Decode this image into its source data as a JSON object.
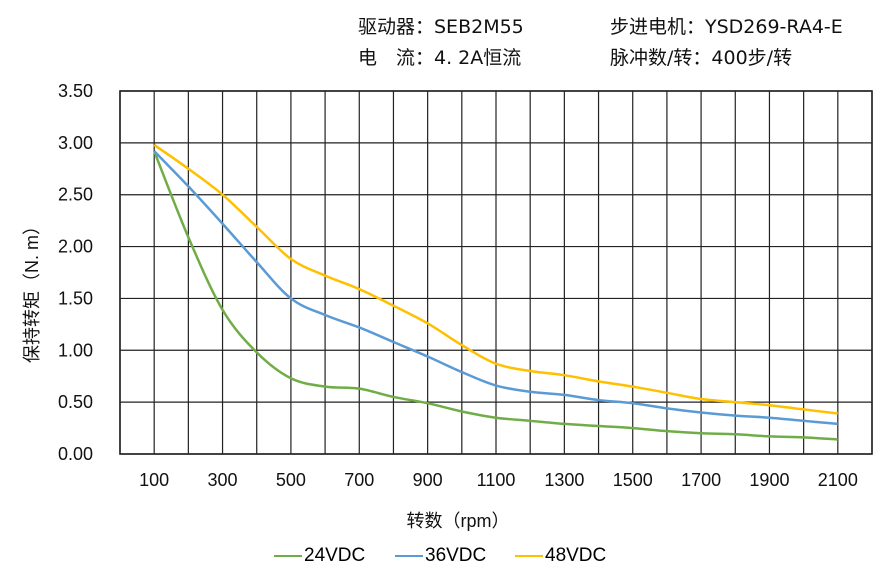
{
  "header": {
    "driver": "驱动器：SEB2M55",
    "motor": "步进电机：YSD269-RA4-E",
    "current": "电　流：4. 2A恒流",
    "pulses": "脉冲数/转：400步/转"
  },
  "chart_data": {
    "type": "line",
    "xlabel": "转数（rpm）",
    "ylabel": "保持转矩（N. m）",
    "xlim": [
      0,
      2200
    ],
    "ylim": [
      0,
      3.5
    ],
    "xticks": [
      100,
      300,
      500,
      700,
      900,
      1100,
      1300,
      1500,
      1700,
      1900,
      2100
    ],
    "yticks": [
      "0.00",
      "0.50",
      "1.00",
      "1.50",
      "2.00",
      "2.50",
      "3.00",
      "3.50"
    ],
    "grid": true,
    "legend": "bottom",
    "x": [
      100,
      200,
      300,
      400,
      500,
      600,
      700,
      800,
      900,
      1000,
      1100,
      1200,
      1300,
      1400,
      1500,
      1600,
      1700,
      1800,
      1900,
      2000,
      2100
    ],
    "series": [
      {
        "name": "24VDC",
        "color": "#70ad47",
        "values": [
          2.92,
          2.09,
          1.39,
          0.98,
          0.73,
          0.65,
          0.63,
          0.55,
          0.49,
          0.41,
          0.35,
          0.32,
          0.29,
          0.27,
          0.25,
          0.22,
          0.2,
          0.19,
          0.17,
          0.16,
          0.14
        ]
      },
      {
        "name": "36VDC",
        "color": "#5b9bd5",
        "values": [
          2.92,
          2.58,
          2.22,
          1.85,
          1.5,
          1.34,
          1.22,
          1.08,
          0.94,
          0.79,
          0.66,
          0.6,
          0.57,
          0.52,
          0.49,
          0.44,
          0.4,
          0.37,
          0.35,
          0.32,
          0.29
        ]
      },
      {
        "name": "48VDC",
        "color": "#ffc000",
        "values": [
          2.98,
          2.75,
          2.5,
          2.19,
          1.88,
          1.72,
          1.59,
          1.43,
          1.26,
          1.05,
          0.87,
          0.8,
          0.76,
          0.7,
          0.65,
          0.59,
          0.53,
          0.5,
          0.47,
          0.43,
          0.39
        ]
      }
    ]
  }
}
